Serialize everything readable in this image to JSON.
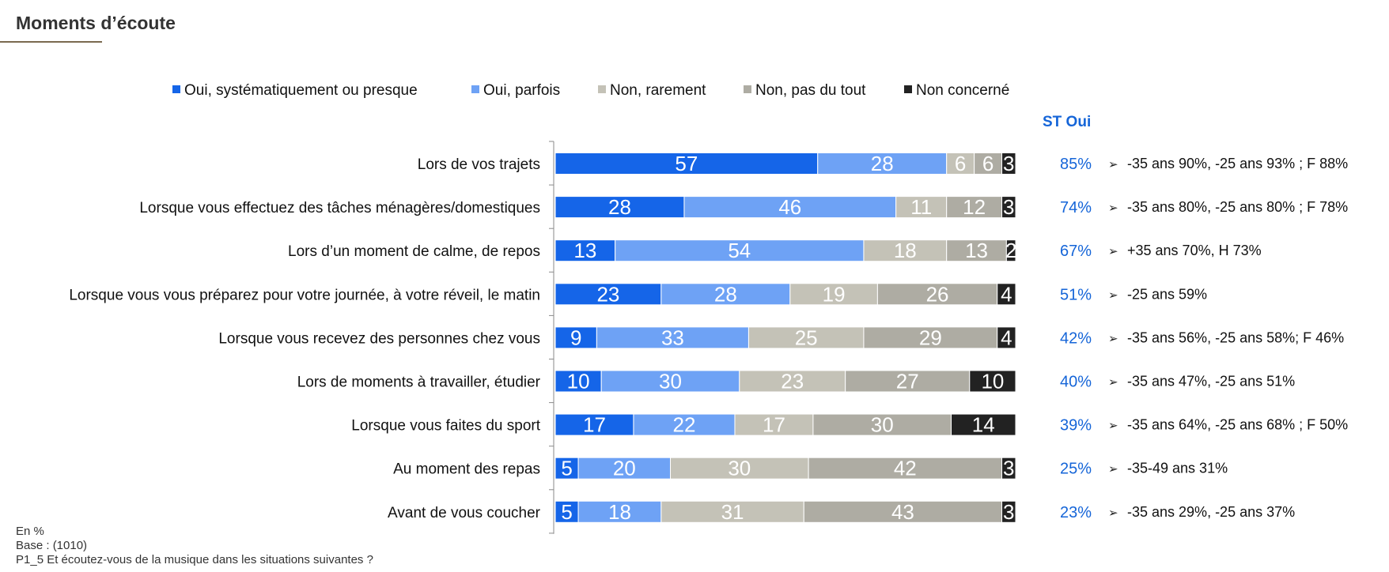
{
  "title": "Moments d’écoute",
  "st_oui_header": "ST Oui",
  "notes": {
    "unit": "En %",
    "base": "Base : (1010)",
    "question": "P1_5 Et écoutez-vous de la musique dans les situations suivantes ?"
  },
  "chart_data": {
    "type": "bar",
    "orientation": "horizontal",
    "stacked": true,
    "xlim": [
      0,
      100
    ],
    "legend_position": "top",
    "categories": [
      "Lors de vos trajets",
      "Lorsque vous effectuez des tâches ménagères/domestiques",
      "Lors d’un moment de calme, de repos",
      "Lorsque vous vous préparez pour votre journée, à votre réveil, le matin",
      "Lorsque vous recevez des personnes chez vous",
      "Lors de moments à travailler, étudier",
      "Lorsque vous faites du sport",
      "Au moment des repas",
      "Avant de vous coucher"
    ],
    "series": [
      {
        "name": "Oui, systématiquement ou presque",
        "color": "#1565e8",
        "values": [
          57,
          28,
          13,
          23,
          9,
          10,
          17,
          5,
          5
        ]
      },
      {
        "name": "Oui, parfois",
        "color": "#6ea2f5",
        "values": [
          28,
          46,
          54,
          28,
          33,
          30,
          22,
          20,
          18
        ]
      },
      {
        "name": "Non, rarement",
        "color": "#c4c2b7",
        "values": [
          6,
          11,
          18,
          19,
          25,
          23,
          17,
          30,
          31
        ]
      },
      {
        "name": "Non, pas du tout",
        "color": "#aeaca3",
        "values": [
          6,
          12,
          13,
          26,
          29,
          27,
          30,
          42,
          43
        ]
      },
      {
        "name": "Non concerné",
        "color": "#222222",
        "values": [
          3,
          3,
          2,
          4,
          4,
          10,
          14,
          3,
          3
        ]
      }
    ],
    "st_oui": [
      "85%",
      "74%",
      "67%",
      "51%",
      "42%",
      "40%",
      "39%",
      "25%",
      "23%"
    ],
    "st_oui_color": "#1565d8",
    "comment_bullet": "➢",
    "comments": [
      "-35 ans 90%, -25 ans 93% ; F 88%",
      "-35 ans 80%, -25 ans 80% ; F 78%",
      "+35 ans 70%, H 73%",
      "-25 ans 59%",
      "-35 ans 56%, -25 ans 58%; F 46%",
      "-35 ans 47%, -25 ans 51%",
      "-35 ans 64%, -25 ans 68% ; F 50%",
      "-35-49 ans 31%",
      "-35 ans 29%, -25 ans 37%"
    ]
  }
}
